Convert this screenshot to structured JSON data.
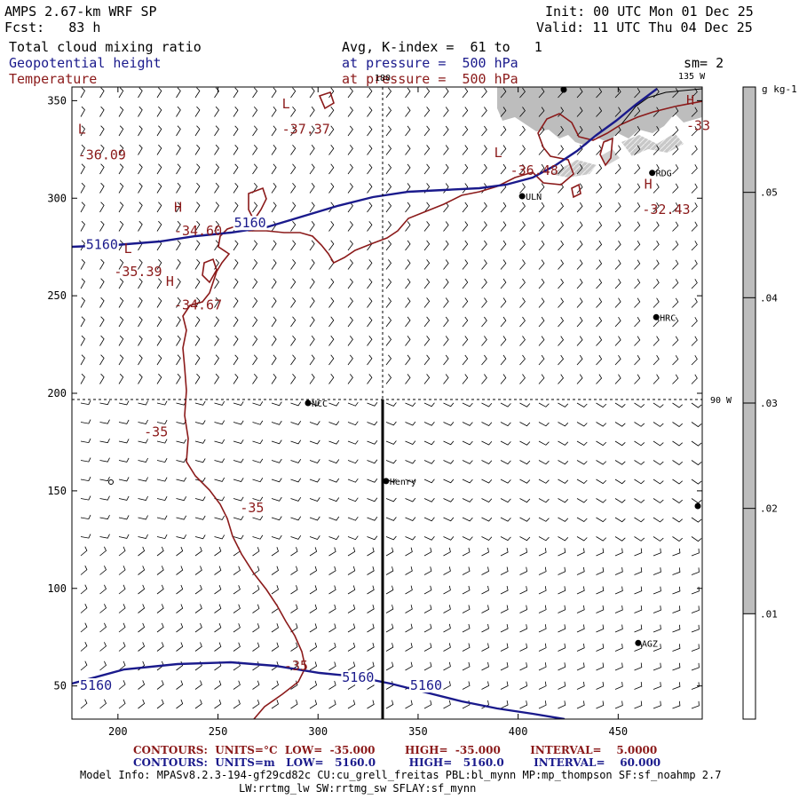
{
  "header": {
    "model": "AMPS 2.67-km WRF SP",
    "forecast": "Fcst:   83 h",
    "init": "Init: 00 UTC Mon 01 Dec 25",
    "valid": "Valid: 11 UTC Thu 04 Dec 25",
    "field1": "Total cloud mixing ratio",
    "field2": "Geopotential height",
    "field3": "Temperature",
    "avg": "Avg, K-index =  61 to   1",
    "pressure1": "at pressure =  500 hPa",
    "pressure2": "at pressure =  500 hPa",
    "sm": "sm= 2"
  },
  "map": {
    "meridian_180": "180",
    "meridian_135": "135 W",
    "meridian_90": "90 W",
    "x_ticks": [
      "200",
      "250",
      "300",
      "350",
      "400",
      "450"
    ],
    "y_ticks": [
      "350",
      "300",
      "250",
      "200",
      "150",
      "100",
      "50"
    ],
    "x_tick_values": [
      200,
      250,
      300,
      350,
      400,
      450
    ],
    "y_tick_values": [
      350,
      300,
      250,
      200,
      150,
      100,
      50
    ],
    "xlim": [
      177,
      492
    ],
    "ylim": [
      33,
      357
    ],
    "stations": [
      {
        "name": "RDG",
        "x": 467,
        "y": 313
      },
      {
        "name": "ULN",
        "x": 402,
        "y": 301
      },
      {
        "name": "HRC",
        "x": 469,
        "y": 239
      },
      {
        "name": "NCC",
        "x": 295,
        "y": 195
      },
      {
        "name": "Henry",
        "x": 334,
        "y": 155
      },
      {
        "name": "AGZ",
        "x": 460,
        "y": 72
      }
    ],
    "temp_labels": [
      {
        "text": "L",
        "x": 180,
        "y": 333
      },
      {
        "text": "-36.09",
        "x": 180,
        "y": 320
      },
      {
        "text": "L",
        "x": 282,
        "y": 346
      },
      {
        "text": "-37.37",
        "x": 282,
        "y": 333
      },
      {
        "text": "L",
        "x": 388,
        "y": 321
      },
      {
        "text": "-36.48",
        "x": 396,
        "y": 312
      },
      {
        "text": "H",
        "x": 484,
        "y": 348
      },
      {
        "text": "-33",
        "x": 484,
        "y": 335
      },
      {
        "text": "H",
        "x": 463,
        "y": 305
      },
      {
        "text": "-32.43",
        "x": 462,
        "y": 292
      },
      {
        "text": "H",
        "x": 228,
        "y": 293
      },
      {
        "text": "-34.60",
        "x": 228,
        "y": 281
      },
      {
        "text": "L",
        "x": 203,
        "y": 272
      },
      {
        "text": "-35.39",
        "x": 198,
        "y": 260
      },
      {
        "text": "H",
        "x": 224,
        "y": 255
      },
      {
        "text": "-34.67",
        "x": 228,
        "y": 243
      },
      {
        "text": "-35",
        "x": 213,
        "y": 178
      },
      {
        "text": "-35",
        "x": 261,
        "y": 139
      },
      {
        "text": "-35",
        "x": 283,
        "y": 58
      }
    ],
    "height_labels": [
      {
        "text": "5160",
        "x": 184,
        "y": 274
      },
      {
        "text": "5160",
        "x": 258,
        "y": 285
      },
      {
        "text": "5160",
        "x": 181,
        "y": 48
      },
      {
        "text": "5160",
        "x": 312,
        "y": 52
      },
      {
        "text": "5160",
        "x": 346,
        "y": 48
      }
    ]
  },
  "colorbar": {
    "unit": "g kg-1",
    "ticks": [
      ".05",
      ".04",
      ".03",
      ".02",
      ".01"
    ],
    "tick_values": [
      0.05,
      0.04,
      0.03,
      0.02,
      0.01
    ],
    "range": [
      0,
      0.06
    ],
    "shade_from": 0.01,
    "shade_color": "#bdbdbd"
  },
  "footer": {
    "contours1": "CONTOURS:  UNITS=°C  LOW=  -35.000        HIGH=  -35.000        INTERVAL=    5.0000",
    "contours2": "CONTOURS:  UNITS=m   LOW=   5160.0         HIGH=   5160.0        INTERVAL=    60.000",
    "model_info": "Model Info: MPASv8.2.3-194-gf29cd82c CU:cu_grell_freitas PBL:bl_mynn MP:mp_thompson SF:sf_noahmp 2.7",
    "model_info2": "LW:rrtmg_lw SW:rrtmg_sw SFLAY:sf_mynn"
  },
  "colors": {
    "temperature": "#8b1a1a",
    "height": "#1a1a8c",
    "cloud": "#bdbdbd"
  }
}
